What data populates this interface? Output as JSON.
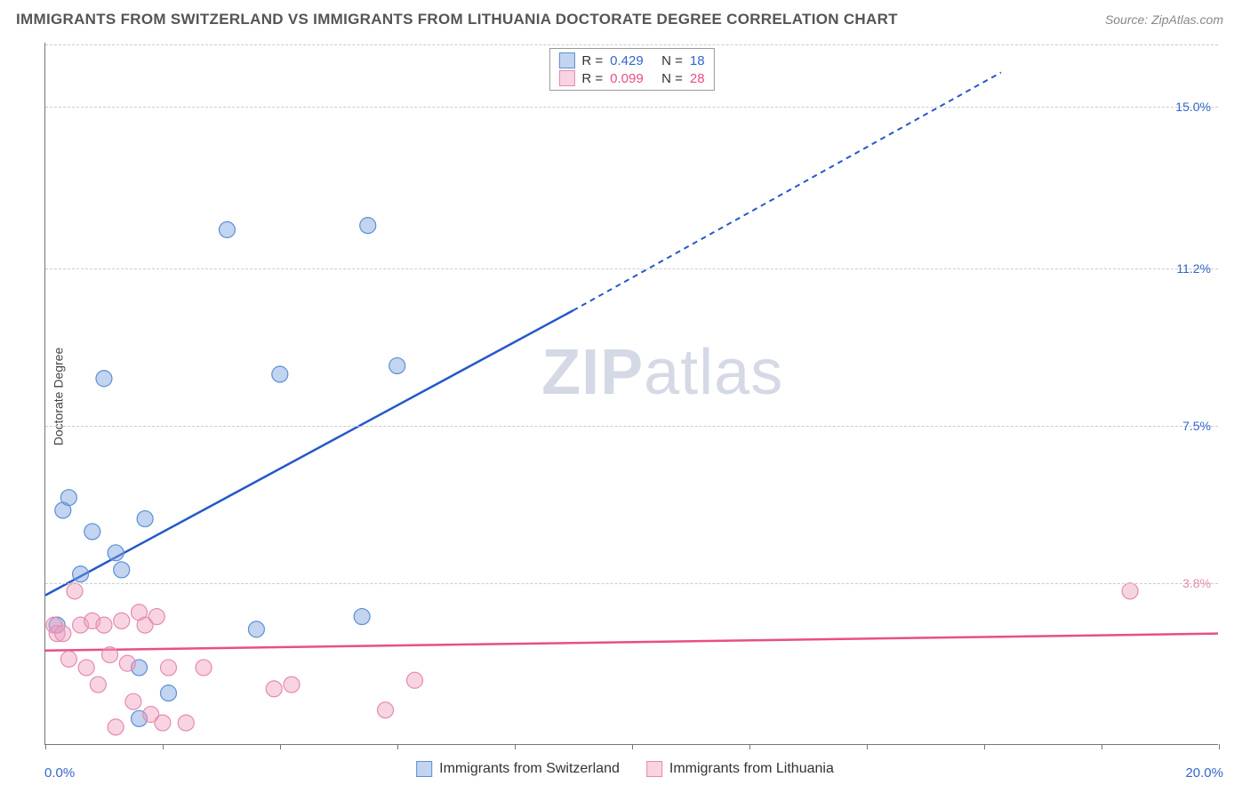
{
  "title": "IMMIGRANTS FROM SWITZERLAND VS IMMIGRANTS FROM LITHUANIA DOCTORATE DEGREE CORRELATION CHART",
  "source_label": "Source: ZipAtlas.com",
  "watermark": {
    "bold": "ZIP",
    "rest": "atlas"
  },
  "y_axis_label": "Doctorate Degree",
  "chart": {
    "type": "scatter",
    "xlim": [
      0.0,
      20.0
    ],
    "ylim": [
      0.0,
      16.5
    ],
    "x_ticks": [
      "0.0%",
      "20.0%"
    ],
    "x_tick_color": "#3366cc",
    "x_minor_tick_positions_pct": [
      0,
      10,
      20,
      30,
      40,
      50,
      60,
      70,
      80,
      90,
      100
    ],
    "y_gridlines": [
      {
        "value": 3.8,
        "label": "3.8%",
        "color": "#e58ab0"
      },
      {
        "value": 7.5,
        "label": "7.5%",
        "color": "#3366cc"
      },
      {
        "value": 11.2,
        "label": "11.2%",
        "color": "#3366cc"
      },
      {
        "value": 15.0,
        "label": "15.0%",
        "color": "#3366cc"
      }
    ],
    "grid_color": "#d0d0d0",
    "background_color": "#ffffff",
    "series": [
      {
        "name": "Immigrants from Switzerland",
        "color_fill": "rgba(120,160,220,0.45)",
        "color_stroke": "#5b8fd6",
        "trend_color": "#2458c9",
        "R": 0.429,
        "N": 18,
        "marker_radius": 9,
        "trend": {
          "x0": 0.0,
          "y0": 3.5,
          "x1": 9.0,
          "y1": 10.2,
          "x2": 16.3,
          "y2": 15.8,
          "dashed_from_x": 9.0
        },
        "points": [
          {
            "x": 0.2,
            "y": 2.8
          },
          {
            "x": 0.3,
            "y": 5.5
          },
          {
            "x": 0.4,
            "y": 5.8
          },
          {
            "x": 0.6,
            "y": 4.0
          },
          {
            "x": 0.8,
            "y": 5.0
          },
          {
            "x": 1.2,
            "y": 4.5
          },
          {
            "x": 1.3,
            "y": 4.1
          },
          {
            "x": 1.0,
            "y": 8.6
          },
          {
            "x": 1.6,
            "y": 1.8
          },
          {
            "x": 1.7,
            "y": 5.3
          },
          {
            "x": 1.6,
            "y": 0.6
          },
          {
            "x": 2.1,
            "y": 1.2
          },
          {
            "x": 3.1,
            "y": 12.1
          },
          {
            "x": 3.6,
            "y": 2.7
          },
          {
            "x": 4.0,
            "y": 8.7
          },
          {
            "x": 5.4,
            "y": 3.0
          },
          {
            "x": 5.5,
            "y": 12.2
          },
          {
            "x": 6.0,
            "y": 8.9
          }
        ]
      },
      {
        "name": "Immigrants from Lithuania",
        "color_fill": "rgba(240,160,190,0.45)",
        "color_stroke": "#e58ab0",
        "trend_color": "#e94e87",
        "R": 0.099,
        "N": 28,
        "marker_radius": 9,
        "trend": {
          "x0": 0.0,
          "y0": 2.2,
          "x1": 20.0,
          "y1": 2.6
        },
        "points": [
          {
            "x": 0.15,
            "y": 2.8
          },
          {
            "x": 0.2,
            "y": 2.6
          },
          {
            "x": 0.3,
            "y": 2.6
          },
          {
            "x": 0.4,
            "y": 2.0
          },
          {
            "x": 0.5,
            "y": 3.6
          },
          {
            "x": 0.6,
            "y": 2.8
          },
          {
            "x": 0.7,
            "y": 1.8
          },
          {
            "x": 0.8,
            "y": 2.9
          },
          {
            "x": 0.9,
            "y": 1.4
          },
          {
            "x": 1.0,
            "y": 2.8
          },
          {
            "x": 1.1,
            "y": 2.1
          },
          {
            "x": 1.2,
            "y": 0.4
          },
          {
            "x": 1.3,
            "y": 2.9
          },
          {
            "x": 1.4,
            "y": 1.9
          },
          {
            "x": 1.5,
            "y": 1.0
          },
          {
            "x": 1.6,
            "y": 3.1
          },
          {
            "x": 1.7,
            "y": 2.8
          },
          {
            "x": 1.8,
            "y": 0.7
          },
          {
            "x": 1.9,
            "y": 3.0
          },
          {
            "x": 2.0,
            "y": 0.5
          },
          {
            "x": 2.1,
            "y": 1.8
          },
          {
            "x": 2.4,
            "y": 0.5
          },
          {
            "x": 2.7,
            "y": 1.8
          },
          {
            "x": 3.9,
            "y": 1.3
          },
          {
            "x": 4.2,
            "y": 1.4
          },
          {
            "x": 5.8,
            "y": 0.8
          },
          {
            "x": 6.3,
            "y": 1.5
          },
          {
            "x": 18.5,
            "y": 3.6
          }
        ]
      }
    ],
    "legend_top": {
      "border_color": "#999999",
      "rows": [
        {
          "swatch_fill": "rgba(120,160,220,0.45)",
          "swatch_border": "#5b8fd6",
          "text_prefix": "R = ",
          "r": "0.429",
          "n_prefix": "N = ",
          "n": "18",
          "text_color": "#3366cc"
        },
        {
          "swatch_fill": "rgba(240,160,190,0.45)",
          "swatch_border": "#e58ab0",
          "text_prefix": "R = ",
          "r": "0.099",
          "n_prefix": "N = ",
          "n": "28",
          "text_color": "#e94e87"
        }
      ]
    },
    "legend_bottom": [
      {
        "swatch_fill": "rgba(120,160,220,0.45)",
        "swatch_border": "#5b8fd6",
        "label": "Immigrants from Switzerland"
      },
      {
        "swatch_fill": "rgba(240,160,190,0.45)",
        "swatch_border": "#e58ab0",
        "label": "Immigrants from Lithuania"
      }
    ]
  }
}
